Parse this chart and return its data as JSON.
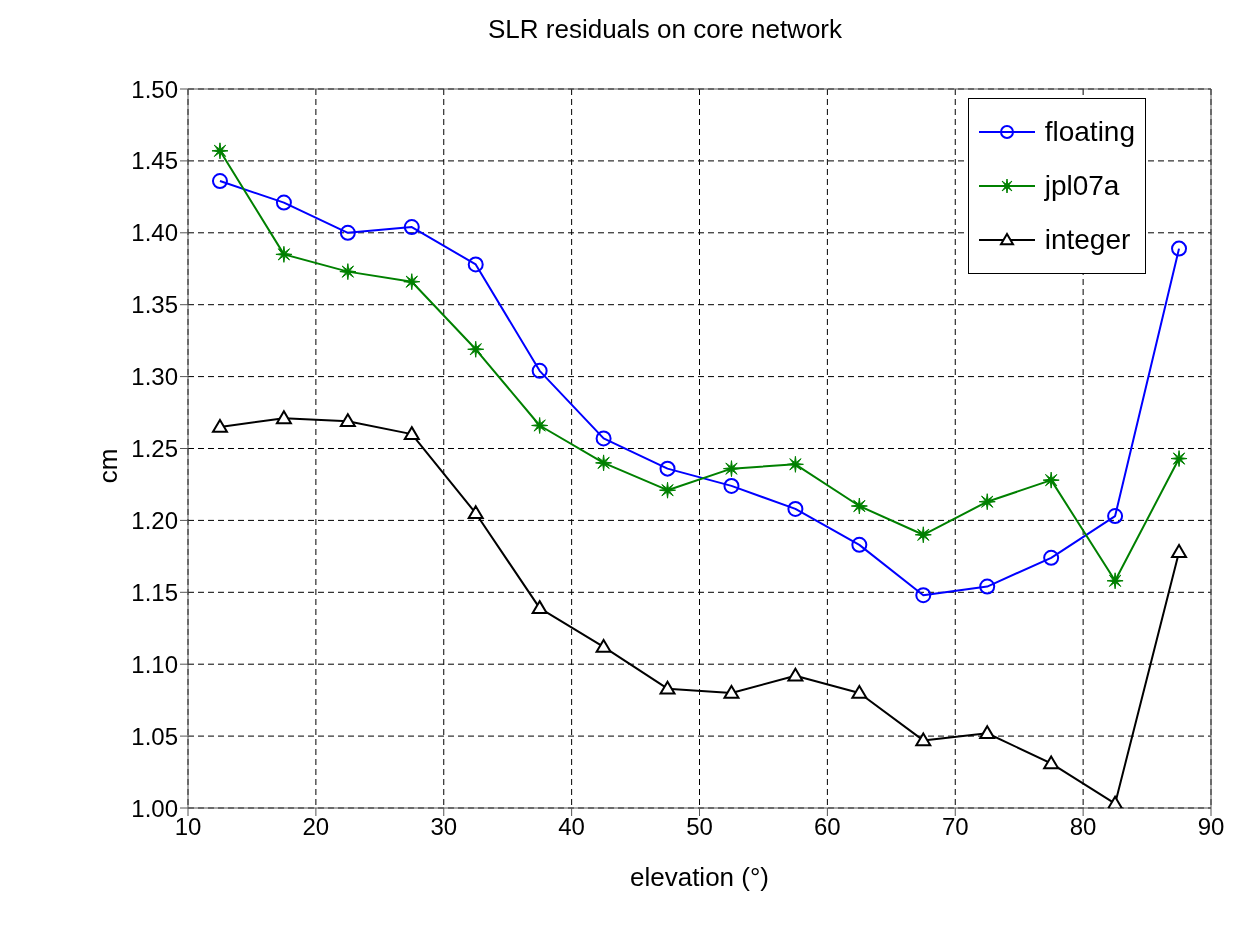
{
  "chart_data": {
    "type": "line",
    "title": "SLR residuals on core network",
    "xlabel": "elevation (°)",
    "ylabel": "cm",
    "x": [
      12.5,
      17.5,
      22.5,
      27.5,
      32.5,
      37.5,
      42.5,
      47.5,
      52.5,
      57.5,
      62.5,
      67.5,
      72.5,
      77.5,
      82.5,
      87.5
    ],
    "series": [
      {
        "name": "floating",
        "color": "#0000ff",
        "marker": "circle",
        "values": [
          1.436,
          1.421,
          1.4,
          1.404,
          1.378,
          1.304,
          1.257,
          1.236,
          1.224,
          1.208,
          1.183,
          1.148,
          1.154,
          1.174,
          1.203,
          1.389
        ]
      },
      {
        "name": "jpl07a",
        "color": "#008000",
        "marker": "star",
        "values": [
          1.457,
          1.385,
          1.373,
          1.366,
          1.319,
          1.266,
          1.24,
          1.221,
          1.236,
          1.239,
          1.21,
          1.19,
          1.213,
          1.228,
          1.158,
          1.243
        ]
      },
      {
        "name": "integer",
        "color": "#000000",
        "marker": "triangle",
        "values": [
          1.265,
          1.271,
          1.269,
          1.26,
          1.205,
          1.139,
          1.112,
          1.083,
          1.08,
          1.092,
          1.08,
          1.047,
          1.052,
          1.031,
          1.003,
          1.178
        ]
      }
    ],
    "xlim": [
      10,
      90
    ],
    "xticks": [
      10,
      20,
      30,
      40,
      50,
      60,
      70,
      80,
      90
    ],
    "ylim": [
      1.0,
      1.5
    ],
    "yticks": [
      {
        "value": 1.0,
        "label": "1.00"
      },
      {
        "value": 1.05,
        "label": "1.05"
      },
      {
        "value": 1.1,
        "label": "1.10"
      },
      {
        "value": 1.15,
        "label": "1.15"
      },
      {
        "value": 1.2,
        "label": "1.20"
      },
      {
        "value": 1.25,
        "label": "1.25"
      },
      {
        "value": 1.3,
        "label": "1.30"
      },
      {
        "value": 1.35,
        "label": "1.35"
      },
      {
        "value": 1.4,
        "label": "1.40"
      },
      {
        "value": 1.45,
        "label": "1.45"
      },
      {
        "value": 1.5,
        "label": "1.50"
      }
    ],
    "grid": true,
    "legend": "top right",
    "line_style": "solid"
  }
}
